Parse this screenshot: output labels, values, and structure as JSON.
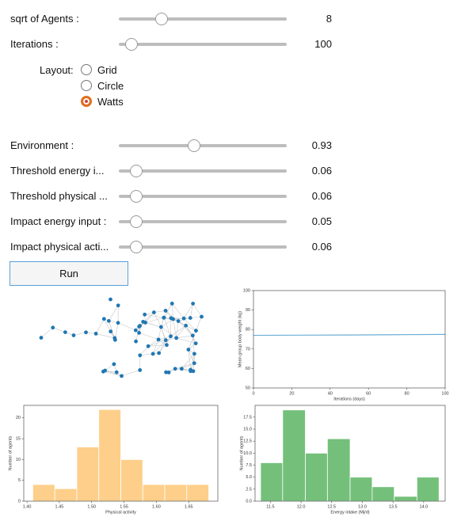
{
  "controls": {
    "sliders": [
      {
        "label": "sqrt of Agents :",
        "value": 8
      },
      {
        "label": "Iterations :",
        "value": 100
      }
    ],
    "layout": {
      "label": "Layout:",
      "options": [
        "Grid",
        "Circle",
        "Watts"
      ],
      "selected": 2
    },
    "parameters": [
      {
        "label": "Environment :",
        "value": 0.93
      },
      {
        "label": "Threshold energy i...",
        "value": 0.06
      },
      {
        "label": "Threshold physical ...",
        "value": 0.06
      },
      {
        "label": "Impact energy input :",
        "value": 0.05
      },
      {
        "label": "Impact physical acti...",
        "value": 0.06
      }
    ],
    "button": "Run"
  },
  "chart_data": [
    {
      "type": "line",
      "xlabel": "Iterations (days)",
      "ylabel": "Mean group body weight (kg)",
      "x": [
        0,
        25,
        50,
        75,
        100
      ],
      "values": [
        77.0,
        77.1,
        77.2,
        77.35,
        77.5
      ],
      "color": "#6baed6",
      "xlim": [
        0,
        100
      ],
      "xticks": [
        0,
        20,
        40,
        60,
        80,
        100
      ],
      "ylim": [
        50,
        100
      ],
      "yticks": [
        50,
        60,
        70,
        80,
        90,
        100
      ]
    },
    {
      "type": "histogram",
      "xlabel": "Physical activity",
      "ylabel": "Number of agents",
      "bins": [
        1.409,
        1.443,
        1.477,
        1.511,
        1.545,
        1.579,
        1.613,
        1.647,
        1.681
      ],
      "values": [
        4,
        3,
        13,
        22,
        10,
        4,
        4,
        4
      ],
      "color": "#fecf8a",
      "xlim": [
        1.395,
        1.695
      ],
      "xticks": [
        {
          "value": 1.4,
          "label": "1.40"
        },
        1.45,
        {
          "value": 1.5,
          "label": "1.50"
        },
        1.55,
        {
          "value": 1.6,
          "label": "1.60"
        },
        1.65
      ],
      "ylim": [
        0,
        23
      ],
      "yticks": [
        0,
        5,
        10,
        15,
        20
      ]
    },
    {
      "type": "histogram",
      "xlabel": "Energy intake (Mj/d)",
      "ylabel": "Number of agents",
      "bins": [
        11.34,
        11.7,
        12.07,
        12.43,
        12.8,
        13.16,
        13.52,
        13.89,
        14.25
      ],
      "values": [
        8,
        19,
        10,
        13,
        5,
        3,
        1,
        5
      ],
      "color": "#74c07a",
      "xlim": [
        11.25,
        14.35
      ],
      "xticks": [
        11.5,
        {
          "value": 12.0,
          "label": "12.0"
        },
        12.5,
        {
          "value": 13.0,
          "label": "13.0"
        },
        13.5,
        {
          "value": 14.0,
          "label": "14.0"
        }
      ],
      "ylim": [
        0,
        19.95
      ],
      "yticks": [
        {
          "value": 0,
          "label": "0.0"
        },
        2.5,
        {
          "value": 5,
          "label": "5.0"
        },
        7.5,
        {
          "value": 10,
          "label": "10.0"
        },
        12.5,
        {
          "value": 15,
          "label": "15.0"
        },
        17.5
      ]
    }
  ]
}
